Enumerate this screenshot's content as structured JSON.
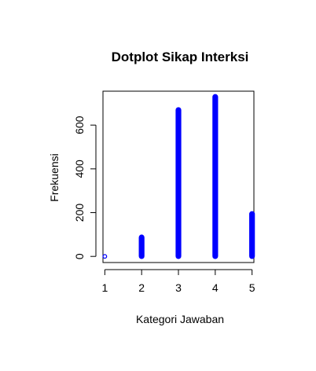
{
  "chart_data": {
    "type": "scatter",
    "title": "Dotplot Sikap Interksi",
    "xlabel": "Kategori Jawaban",
    "ylabel": "Frekuensi",
    "xlim": [
      0.95,
      5.05
    ],
    "ylim": [
      -28,
      755
    ],
    "x_ticks": [
      1,
      2,
      3,
      4,
      5
    ],
    "y_ticks": [
      0,
      200,
      400,
      600
    ],
    "grid": false,
    "legend": "none",
    "point_color": "#0000ff",
    "series": [
      {
        "points": [
          {
            "x": 1,
            "y": 0,
            "height": 6
          },
          {
            "x": 2,
            "y": 0,
            "height": 88
          },
          {
            "x": 3,
            "y": 0,
            "height": 670
          },
          {
            "x": 4,
            "y": 0,
            "height": 730
          },
          {
            "x": 5,
            "y": 0,
            "height": 195
          }
        ]
      }
    ]
  }
}
